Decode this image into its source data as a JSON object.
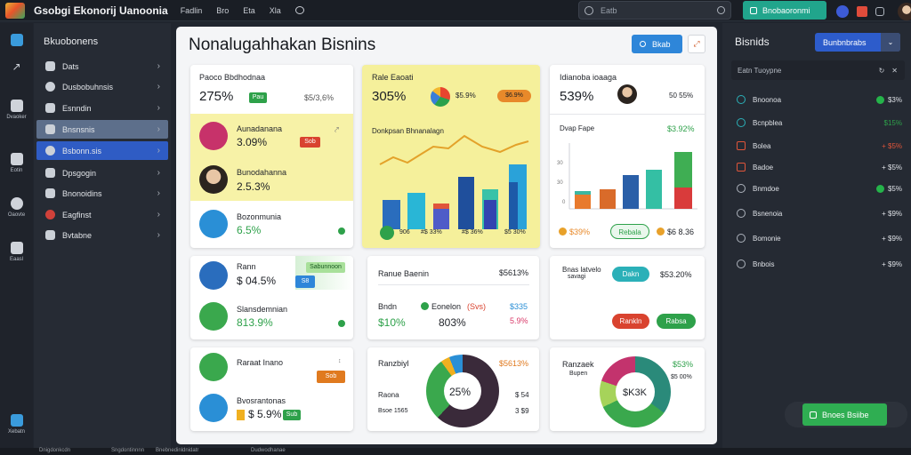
{
  "app": {
    "name": "Gsobgi Ekonorij Uanoonia"
  },
  "topnav": [
    "Fadlin",
    "Bro",
    "Eta",
    "Xla"
  ],
  "search": {
    "placeholder": "Eatb"
  },
  "topbutton": {
    "label": "Bnobaoronmi"
  },
  "rail": [
    "Dvaoker",
    "Eotin",
    "Oaovte",
    "Eaasl",
    "Xebatn"
  ],
  "sidebar": {
    "title": "Bkuobonens",
    "items": [
      "Dats",
      "Dusbobuhnsis",
      "Esnndin",
      "Bnsnsnis",
      "Bsbonn.sis",
      "Dpsgogin",
      "Bnonoidins",
      "Eagfinst",
      "Bvtabne"
    ]
  },
  "main": {
    "title": "Nonalugahhakan Bisnins",
    "button": "Bkab"
  },
  "cards": {
    "c1": {
      "title": "Paoco Bbdhodnaa",
      "big": "275%",
      "pill": "Pau",
      "right": "$5/3,6%",
      "row1_label": "Aunadanana",
      "row1_value": "3.09%",
      "row1_pill": "Sob",
      "row2_label": "Bunodahanna",
      "row2_value": "2.5.3%",
      "row3_label": "Bozonmunia",
      "row3_value": "6.5%"
    },
    "c2": {
      "title": "Rale Eaoati",
      "big": "305%",
      "mid": "$5.9%",
      "pill": "$6.9%",
      "sub": "Donkpsan Bhnanalagn",
      "footer": [
        "906",
        "#$ 33%",
        "#$ 36%",
        "$5 30%"
      ]
    },
    "c3": {
      "title": "Idianoba ioaaga",
      "big": "539%",
      "right": "50 55%",
      "sub": "Dvap Fape",
      "sub_value": "$3.92%",
      "footer_left": "$39%",
      "footer_pill": "Rebala",
      "footer_right": "$6 8.36"
    },
    "c4": {
      "row1_label": "Rann",
      "row1_value": "$ 04.5%",
      "row1_pill": "Sabunnoon",
      "row1_tag": "S8",
      "row2_label": "Slansdemnian",
      "row2_value": "813.9%"
    },
    "c5": {
      "title": "Ranue Baenin",
      "right": "$5613%",
      "sub1": "Bndn",
      "sub2": "Eonelon",
      "sub2b": "(Svs)",
      "sub3": "$335",
      "v1": "$10%",
      "v2": "803%",
      "v3": "5.9%"
    },
    "c6": {
      "title": "Bnas latvelo",
      "title2": "savagi",
      "pill1": "Dakn",
      "right": "$53.20%",
      "pill2": "Rankln",
      "pill3": "Rabsa"
    },
    "c7": {
      "title": "Raraat Inano",
      "pill": "Sob",
      "row2": "Bvosrantonas",
      "row2_value": "$ 5.9%",
      "row2_pill": "Sub"
    },
    "c8": {
      "title": "Ranzbiyl",
      "right": "$5613%",
      "lab1": "Raona",
      "v1": "$ 54",
      "lab2": "Bsoe 1565",
      "v2": "3 $9",
      "donut": "25%"
    },
    "c9": {
      "title": "Ranzaek",
      "sub": "Bupen",
      "right": "$53%",
      "sub_right": "$5 00%",
      "donut": "$K3K"
    }
  },
  "rpanel": {
    "title": "Bisnids",
    "button": "Bunbnbrabs",
    "search": "Eatn Tuoypne",
    "rows": [
      {
        "label": "Bnoonoa",
        "value": "$3%"
      },
      {
        "label": "Bcnpblea",
        "value": "$15%"
      },
      {
        "label": "Bolea",
        "value": "+ $5%"
      },
      {
        "label": "Badoe",
        "value": "+ $5%"
      },
      {
        "label": "Bnmdoe",
        "value": "$5%"
      },
      {
        "label": "Bsnenoia",
        "value": "+ $9%"
      },
      {
        "label": "Bomonie",
        "value": "+ $9%"
      },
      {
        "label": "Bnbois",
        "value": "+ $9%"
      }
    ],
    "green_button": "Bnoes Bsiibe"
  },
  "bottombar": [
    "Dnigdonkcdn",
    "Sngdontinnnn",
    "Bnebnedinldnidatr",
    "Dudwodhanae"
  ],
  "colors": {
    "accent_blue": "#2e86d9",
    "accent_green": "#25b34a",
    "card_yellow": "#f5f09b"
  }
}
